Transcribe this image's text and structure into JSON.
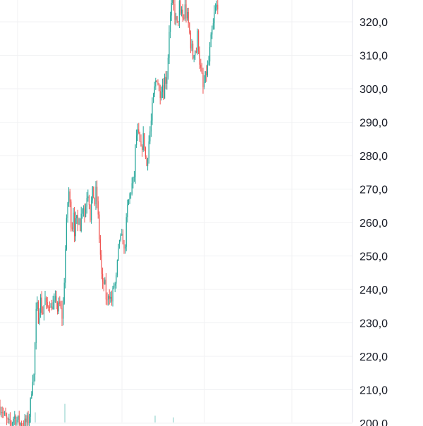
{
  "colors": {
    "up": "#26a69a",
    "down": "#ef5350",
    "grid": "#f0f1f3",
    "axis_text": "#131722",
    "background": "#ffffff"
  },
  "chart_data": {
    "type": "candlestick",
    "y_axis": {
      "position": "right",
      "ticks": [
        "200,0",
        "210,0",
        "220,0",
        "230,0",
        "240,0",
        "250,0",
        "260,0",
        "270,0",
        "280,0",
        "290,0",
        "300,0",
        "310,0",
        "320,0"
      ],
      "tick_values": [
        200,
        210,
        220,
        230,
        240,
        250,
        260,
        270,
        280,
        290,
        300,
        310,
        320
      ],
      "visible_range": [
        199.5,
        326.5
      ]
    },
    "grid": true,
    "vertical_grid_count": 4,
    "legend": "none",
    "price_path": [
      [
        0,
        205
      ],
      [
        3,
        204
      ],
      [
        6,
        202
      ],
      [
        9,
        201
      ],
      [
        12,
        199.5
      ],
      [
        16,
        200
      ],
      [
        20,
        202
      ],
      [
        24,
        201
      ],
      [
        28,
        200
      ],
      [
        32,
        199.5
      ],
      [
        36,
        200
      ],
      [
        40,
        201
      ],
      [
        42,
        203
      ],
      [
        44,
        208
      ],
      [
        46,
        214
      ],
      [
        48,
        214
      ],
      [
        50,
        226
      ],
      [
        52,
        237
      ],
      [
        54,
        231
      ],
      [
        56,
        235
      ],
      [
        58,
        237
      ],
      [
        60,
        232
      ],
      [
        62,
        235
      ],
      [
        64,
        237
      ],
      [
        66,
        234
      ],
      [
        68,
        235
      ],
      [
        70,
        237
      ],
      [
        72,
        234
      ],
      [
        74,
        236
      ],
      [
        76,
        235
      ],
      [
        78,
        236
      ],
      [
        80,
        237
      ],
      [
        82,
        233
      ],
      [
        84,
        236
      ],
      [
        86,
        234
      ],
      [
        88,
        232
      ],
      [
        90,
        236
      ],
      [
        92,
        248
      ],
      [
        94,
        258
      ],
      [
        96,
        266
      ],
      [
        98,
        270
      ],
      [
        100,
        262
      ],
      [
        102,
        258
      ],
      [
        104,
        264
      ],
      [
        106,
        256
      ],
      [
        108,
        262
      ],
      [
        110,
        258
      ],
      [
        112,
        263
      ],
      [
        114,
        258
      ],
      [
        116,
        265
      ],
      [
        118,
        266
      ],
      [
        120,
        262
      ],
      [
        122,
        266
      ],
      [
        124,
        270
      ],
      [
        126,
        268
      ],
      [
        128,
        262
      ],
      [
        130,
        267
      ],
      [
        132,
        270
      ],
      [
        134,
        265
      ],
      [
        136,
        269
      ],
      [
        138,
        266
      ],
      [
        140,
        258
      ],
      [
        142,
        252
      ],
      [
        144,
        244
      ],
      [
        146,
        240
      ],
      [
        148,
        243
      ],
      [
        150,
        238
      ],
      [
        152,
        236
      ],
      [
        154,
        240
      ],
      [
        156,
        238
      ],
      [
        158,
        236
      ],
      [
        160,
        239
      ],
      [
        162,
        242
      ],
      [
        164,
        241
      ],
      [
        166,
        246
      ],
      [
        168,
        252
      ],
      [
        170,
        256
      ],
      [
        172,
        254
      ],
      [
        174,
        256
      ],
      [
        176,
        251
      ],
      [
        178,
        255
      ],
      [
        180,
        263
      ],
      [
        182,
        266
      ],
      [
        184,
        268
      ],
      [
        186,
        270
      ],
      [
        188,
        272
      ],
      [
        190,
        272
      ],
      [
        192,
        282
      ],
      [
        194,
        287
      ],
      [
        196,
        286
      ],
      [
        198,
        284
      ],
      [
        200,
        281
      ],
      [
        202,
        284
      ],
      [
        204,
        286
      ],
      [
        206,
        280
      ],
      [
        208,
        277
      ],
      [
        210,
        282
      ],
      [
        212,
        286
      ],
      [
        214,
        289
      ],
      [
        216,
        294
      ],
      [
        218,
        298
      ],
      [
        220,
        301
      ],
      [
        222,
        304
      ],
      [
        224,
        302
      ],
      [
        226,
        298
      ],
      [
        228,
        300
      ],
      [
        230,
        302
      ],
      [
        232,
        299
      ],
      [
        234,
        304
      ],
      [
        236,
        302
      ],
      [
        238,
        308
      ],
      [
        240,
        318
      ],
      [
        242,
        322
      ],
      [
        244,
        326
      ],
      [
        246,
        325
      ],
      [
        248,
        322
      ],
      [
        250,
        320
      ],
      [
        252,
        318
      ],
      [
        254,
        326
      ],
      [
        256,
        321
      ],
      [
        258,
        324
      ],
      [
        260,
        319
      ],
      [
        262,
        325
      ],
      [
        264,
        322
      ],
      [
        266,
        321
      ],
      [
        268,
        318
      ],
      [
        270,
        314
      ],
      [
        272,
        312
      ],
      [
        274,
        309
      ],
      [
        276,
        313
      ],
      [
        278,
        310
      ],
      [
        280,
        316
      ],
      [
        282,
        312
      ],
      [
        284,
        306
      ],
      [
        286,
        304
      ],
      [
        288,
        300
      ],
      [
        290,
        302
      ],
      [
        292,
        304
      ],
      [
        294,
        306
      ],
      [
        296,
        308
      ],
      [
        298,
        312
      ],
      [
        300,
        316
      ],
      [
        302,
        318
      ],
      [
        304,
        322
      ],
      [
        306,
        324
      ],
      [
        308,
        325
      ],
      [
        310,
        326.5
      ]
    ],
    "volume_visible": [
      [
        50,
        12
      ],
      [
        92,
        22
      ],
      [
        220,
        8
      ],
      [
        246,
        6
      ]
    ]
  }
}
